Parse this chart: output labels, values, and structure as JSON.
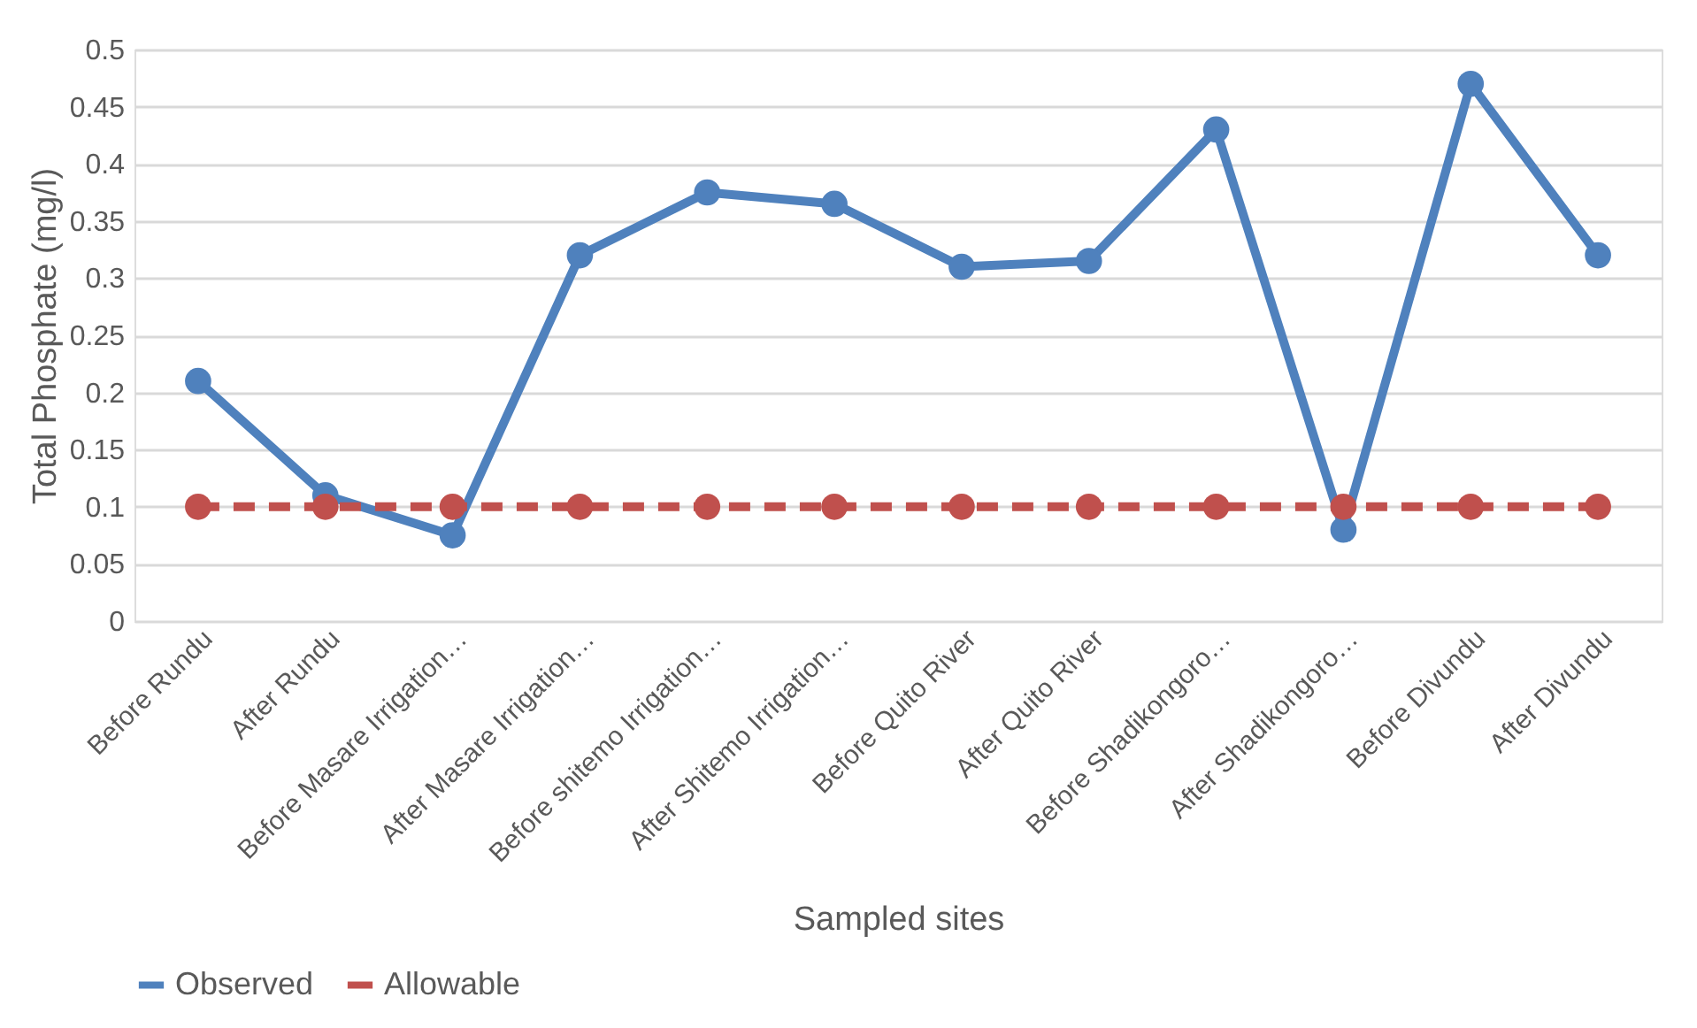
{
  "chart_data": {
    "type": "line",
    "xlabel": "Sampled sites",
    "ylabel": "Total Phosphate (mg/l)",
    "categories": [
      "Before Rundu",
      "After Rundu",
      "Before Masare Irrigation…",
      "After Masare Irrigation…",
      "Before shitemo Irrigation…",
      "After Shitemo Irrigation…",
      "Before Quito River",
      "After Quito River",
      "Before Shadikongoro…",
      "After Shadikongoro…",
      "Before Divundu",
      "After Divundu"
    ],
    "series": [
      {
        "name": "Observed",
        "color": "#4f81bd",
        "line_style": "solid",
        "values": [
          0.21,
          0.11,
          0.075,
          0.32,
          0.375,
          0.365,
          0.31,
          0.315,
          0.43,
          0.08,
          0.47,
          0.32
        ]
      },
      {
        "name": "Allowable",
        "color": "#c0504d",
        "line_style": "dashed",
        "values": [
          0.1,
          0.1,
          0.1,
          0.1,
          0.1,
          0.1,
          0.1,
          0.1,
          0.1,
          0.1,
          0.1,
          0.1
        ]
      }
    ],
    "ylim": [
      0,
      0.5
    ],
    "yticks": [
      0,
      0.05,
      0.1,
      0.15,
      0.2,
      0.25,
      0.3,
      0.35,
      0.4,
      0.45,
      0.5
    ],
    "grid": "y",
    "legend": "bottom",
    "marker": "circle"
  }
}
